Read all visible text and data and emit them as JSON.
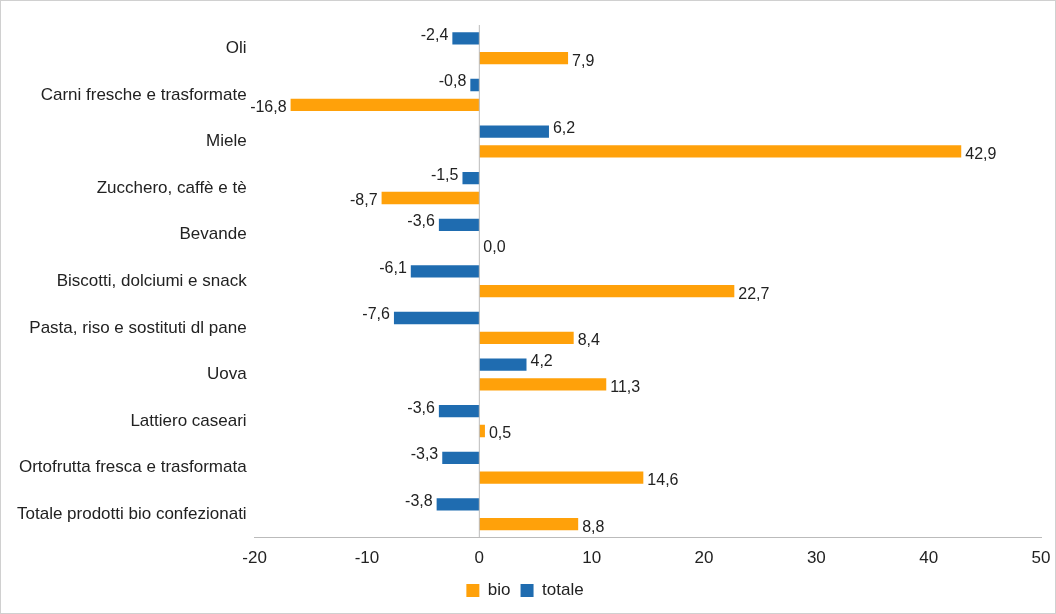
{
  "chart_data": {
    "type": "bar",
    "orientation": "horizontal",
    "categories": [
      "Oli",
      "Carni fresche e trasformate",
      "Miele",
      "Zucchero, caffè e tè",
      "Bevande",
      "Biscotti, dolciumi e snack",
      "Pasta, riso e sostituti dl pane",
      "Uova",
      "Lattiero caseari",
      "Ortofrutta fresca e trasformata",
      "Totale prodotti bio confezionati"
    ],
    "series": [
      {
        "name": "totale",
        "color": "#1f6cb0",
        "values": [
          -2.4,
          -0.8,
          6.2,
          -1.5,
          -3.6,
          -6.1,
          -7.6,
          4.2,
          -3.6,
          -3.3,
          -3.8
        ],
        "value_labels": [
          "-2,4",
          "-0,8",
          "6,2",
          "-1,5",
          "-3,6",
          "-6,1",
          "-7,6",
          "4,2",
          "-3,6",
          "-3,3",
          "-3,8"
        ]
      },
      {
        "name": "bio",
        "color": "#ffa10a",
        "values": [
          7.9,
          -16.8,
          42.9,
          -8.7,
          0.0,
          22.7,
          8.4,
          11.3,
          0.5,
          14.6,
          8.8
        ],
        "value_labels": [
          "7,9",
          "-16,8",
          "42,9",
          "-8,7",
          "0,0",
          "22,7",
          "8,4",
          "11,3",
          "0,5",
          "14,6",
          "8,8"
        ]
      }
    ],
    "xlim": [
      -20,
      50
    ],
    "xticks": [
      -20,
      -10,
      0,
      10,
      20,
      30,
      40,
      50
    ],
    "grid": false,
    "legend": "bottom",
    "ref_lines": [
      {
        "axis": "x",
        "value": 0,
        "color": "#bbbbbb"
      }
    ]
  }
}
